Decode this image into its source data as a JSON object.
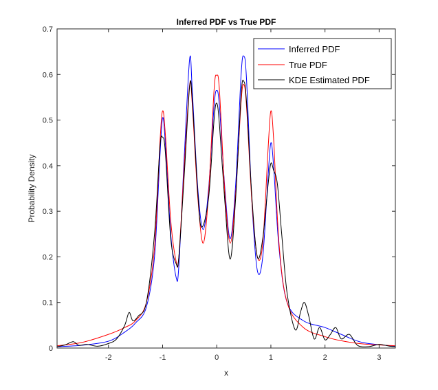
{
  "chart_data": {
    "type": "line",
    "title": "Inferred PDF vs True PDF",
    "xlabel": "x",
    "ylabel": "Probability Density",
    "xlim": [
      -2.95,
      3.3
    ],
    "ylim": [
      0,
      0.7
    ],
    "xticks": [
      -2,
      -1,
      0,
      1,
      2,
      3
    ],
    "xtick_labels": [
      "-2",
      "-1",
      "0",
      "1",
      "2",
      "3"
    ],
    "yticks": [
      0,
      0.1,
      0.2,
      0.3,
      0.4,
      0.5,
      0.6,
      0.7
    ],
    "ytick_labels": [
      "0",
      "0.1",
      "0.2",
      "0.3",
      "0.4",
      "0.5",
      "0.6",
      "0.7"
    ],
    "grid": false,
    "legend_position": "top-right",
    "series": [
      {
        "name": "Inferred PDF",
        "color": "#0000ff",
        "x": [
          -2.95,
          -2.5,
          -2.0,
          -1.7,
          -1.5,
          -1.3,
          -1.15,
          -1.05,
          -1.0,
          -0.95,
          -0.85,
          -0.75,
          -0.7,
          -0.6,
          -0.5,
          -0.45,
          -0.35,
          -0.25,
          -0.15,
          -0.05,
          0.0,
          0.05,
          0.15,
          0.25,
          0.35,
          0.45,
          0.5,
          0.55,
          0.65,
          0.75,
          0.85,
          0.95,
          1.0,
          1.05,
          1.15,
          1.3,
          1.6,
          2.0,
          2.3,
          2.7,
          3.3
        ],
        "values": [
          0.003,
          0.006,
          0.015,
          0.035,
          0.055,
          0.09,
          0.2,
          0.42,
          0.505,
          0.45,
          0.25,
          0.155,
          0.18,
          0.42,
          0.635,
          0.56,
          0.35,
          0.26,
          0.35,
          0.53,
          0.565,
          0.53,
          0.35,
          0.24,
          0.36,
          0.6,
          0.64,
          0.59,
          0.32,
          0.17,
          0.2,
          0.38,
          0.45,
          0.4,
          0.22,
          0.1,
          0.06,
          0.045,
          0.03,
          0.012,
          0.004
        ]
      },
      {
        "name": "True PDF",
        "color": "#ff0000",
        "x": [
          -2.95,
          -2.5,
          -2.0,
          -1.7,
          -1.5,
          -1.3,
          -1.15,
          -1.05,
          -1.0,
          -0.95,
          -0.85,
          -0.75,
          -0.7,
          -0.6,
          -0.5,
          -0.45,
          -0.35,
          -0.25,
          -0.15,
          -0.05,
          0.0,
          0.05,
          0.15,
          0.25,
          0.35,
          0.45,
          0.5,
          0.55,
          0.65,
          0.75,
          0.85,
          0.95,
          1.0,
          1.05,
          1.15,
          1.3,
          1.6,
          2.0,
          2.3,
          2.7,
          3.3
        ],
        "values": [
          0.005,
          0.012,
          0.03,
          0.045,
          0.06,
          0.1,
          0.22,
          0.45,
          0.52,
          0.47,
          0.28,
          0.19,
          0.2,
          0.4,
          0.578,
          0.53,
          0.33,
          0.23,
          0.34,
          0.565,
          0.598,
          0.565,
          0.34,
          0.23,
          0.34,
          0.54,
          0.578,
          0.53,
          0.32,
          0.2,
          0.23,
          0.44,
          0.52,
          0.46,
          0.23,
          0.1,
          0.045,
          0.025,
          0.016,
          0.009,
          0.005
        ]
      },
      {
        "name": "KDE Estimated PDF",
        "color": "#000000",
        "x": [
          -2.95,
          -2.8,
          -2.65,
          -2.55,
          -2.4,
          -2.2,
          -2.0,
          -1.85,
          -1.7,
          -1.62,
          -1.55,
          -1.45,
          -1.3,
          -1.15,
          -1.05,
          -1.0,
          -0.95,
          -0.85,
          -0.75,
          -0.7,
          -0.6,
          -0.5,
          -0.45,
          -0.35,
          -0.28,
          -0.15,
          -0.05,
          0.0,
          0.05,
          0.15,
          0.25,
          0.35,
          0.45,
          0.5,
          0.55,
          0.65,
          0.75,
          0.85,
          0.95,
          1.0,
          1.05,
          1.12,
          1.2,
          1.3,
          1.45,
          1.55,
          1.62,
          1.7,
          1.8,
          1.9,
          2.0,
          2.1,
          2.2,
          2.3,
          2.45,
          2.6,
          2.8,
          3.0,
          3.2,
          3.3
        ],
        "values": [
          0.003,
          0.007,
          0.014,
          0.006,
          0.008,
          0.004,
          0.01,
          0.02,
          0.05,
          0.078,
          0.06,
          0.07,
          0.1,
          0.25,
          0.44,
          0.462,
          0.43,
          0.24,
          0.185,
          0.2,
          0.38,
          0.575,
          0.54,
          0.34,
          0.265,
          0.33,
          0.5,
          0.537,
          0.49,
          0.32,
          0.195,
          0.33,
          0.555,
          0.585,
          0.54,
          0.33,
          0.2,
          0.24,
          0.36,
          0.405,
          0.39,
          0.36,
          0.25,
          0.12,
          0.04,
          0.08,
          0.1,
          0.07,
          0.02,
          0.045,
          0.018,
          0.03,
          0.045,
          0.02,
          0.03,
          0.006,
          0.003,
          0.008,
          0.004,
          0.003
        ]
      }
    ]
  }
}
